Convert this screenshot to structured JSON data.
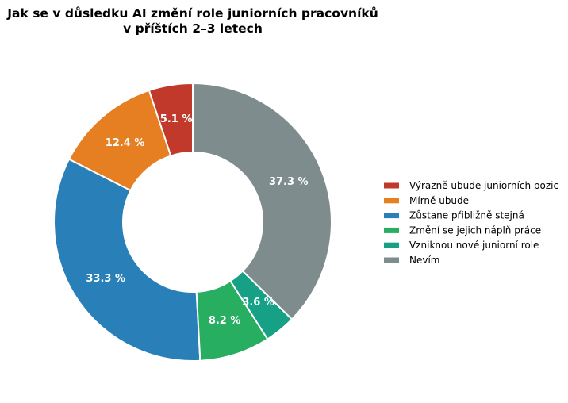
{
  "chart_data": {
    "type": "pie",
    "variant": "donut",
    "title": [
      "Jak se v důsledku AI změní role juniorních pracovníků",
      "v příštích 2–3 letech"
    ],
    "categories": [
      "Výrazně ubude juniorních pozic",
      "Mírně ubude",
      "Zůstane přibližně stejná",
      "Změní se jejich náplň práce",
      "Vzniknou nové juniorní role",
      "Nevím"
    ],
    "values": [
      5.1,
      12.4,
      33.3,
      8.2,
      3.6,
      37.3
    ],
    "labels": [
      "5.1 %",
      "12.4 %",
      "33.3 %",
      "8.2 %",
      "3.6 %",
      "37.3 %"
    ],
    "colors": [
      "#c0392b",
      "#e67e22",
      "#2980b9",
      "#27ae60",
      "#16a085",
      "#7f8c8d"
    ],
    "start_angle_deg": 90,
    "direction": "counterclockwise",
    "legend_placement": "right"
  }
}
